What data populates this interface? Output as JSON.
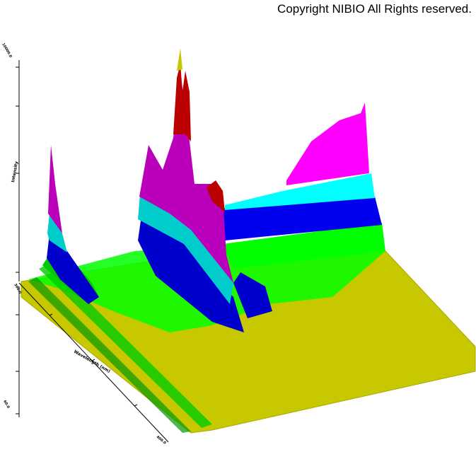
{
  "watermark": "Copyright NIBIO All Rights reserved.",
  "chart_data": {
    "type": "surface-3d",
    "description_visible": false,
    "y_axis": {
      "label": "Intensity",
      "tick_labels": [
        "10000.0",
        "0.0"
      ]
    },
    "x_axis": {
      "label": "Wavelength (nm)",
      "tick_labels": [
        "300.0",
        "400.0"
      ]
    },
    "depth_axis": {
      "tick_labels": [
        "0.0",
        "60.0"
      ]
    },
    "color_levels": [
      "#c8c800",
      "#00ff00",
      "#0000cc",
      "#00cccc",
      "#bb00bb",
      "#bb0000",
      "#ff00ff",
      "#00ffff"
    ],
    "grid": false,
    "legend": "none"
  }
}
